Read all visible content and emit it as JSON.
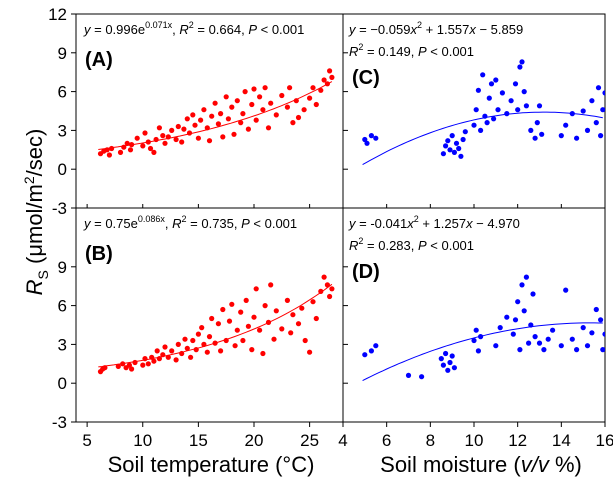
{
  "figure": {
    "y_axis_label_main": "R",
    "y_axis_label_sub": "S",
    "y_axis_label_unit_pre": " (μmol/m",
    "y_axis_label_unit_sup": "2",
    "y_axis_label_unit_post": "/sec)",
    "x_label_left": "Soil temperature (°C)",
    "x_label_right_pre": "Soil moisture (",
    "x_label_right_italic": "v/v",
    "x_label_right_post": " %)",
    "colors": {
      "red": "#ff0000",
      "blue": "#0000ff",
      "axis": "#000000"
    }
  },
  "chart_data": [
    {
      "panel": "(A)",
      "type": "scatter",
      "x_variable": "Soil temperature (°C)",
      "xlim": [
        4,
        28
      ],
      "ylim": [
        -3,
        12
      ],
      "xticks": [
        5,
        10,
        15,
        20,
        25
      ],
      "yticks": [
        -3,
        0,
        3,
        6,
        9,
        12
      ],
      "equation": "y = 0.996e^0.071x, R² = 0.664, P < 0.001",
      "equation_parts": {
        "lhs": "y",
        "mid": " = 0.996e",
        "exp": "0.071x",
        "r": "R",
        "r2": "2",
        "rest": " = 0.664,  ",
        "p": "P",
        "ptail": " < 0.001"
      },
      "fit": {
        "kind": "exp",
        "a": 0.996,
        "b": 0.071,
        "x_range": [
          6,
          27
        ]
      },
      "color": "#ff0000",
      "points": [
        [
          6.2,
          1.2
        ],
        [
          6.5,
          1.4
        ],
        [
          6.8,
          1.5
        ],
        [
          7.0,
          1.1
        ],
        [
          7.2,
          1.6
        ],
        [
          8.0,
          1.3
        ],
        [
          8.3,
          1.7
        ],
        [
          8.6,
          2.0
        ],
        [
          8.9,
          1.5
        ],
        [
          9.0,
          1.9
        ],
        [
          9.5,
          2.4
        ],
        [
          10.0,
          1.8
        ],
        [
          10.2,
          2.8
        ],
        [
          10.5,
          2.1
        ],
        [
          10.7,
          1.6
        ],
        [
          11.0,
          1.3
        ],
        [
          11.2,
          2.3
        ],
        [
          11.5,
          3.2
        ],
        [
          11.8,
          2.6
        ],
        [
          12.0,
          2.0
        ],
        [
          12.3,
          2.5
        ],
        [
          12.6,
          3.0
        ],
        [
          13.0,
          2.3
        ],
        [
          13.2,
          3.3
        ],
        [
          13.5,
          2.1
        ],
        [
          13.7,
          3.1
        ],
        [
          14.0,
          3.9
        ],
        [
          14.2,
          2.8
        ],
        [
          14.5,
          4.2
        ],
        [
          14.7,
          3.4
        ],
        [
          15.0,
          2.4
        ],
        [
          15.2,
          3.8
        ],
        [
          15.5,
          4.6
        ],
        [
          15.8,
          3.2
        ],
        [
          16.0,
          2.2
        ],
        [
          16.2,
          4.1
        ],
        [
          16.5,
          5.1
        ],
        [
          16.8,
          3.5
        ],
        [
          17.0,
          4.3
        ],
        [
          17.2,
          2.5
        ],
        [
          17.5,
          5.6
        ],
        [
          17.7,
          3.9
        ],
        [
          18.0,
          4.8
        ],
        [
          18.2,
          2.7
        ],
        [
          18.5,
          5.3
        ],
        [
          18.8,
          3.6
        ],
        [
          19.0,
          4.3
        ],
        [
          19.2,
          6.0
        ],
        [
          19.5,
          3.1
        ],
        [
          19.8,
          5.0
        ],
        [
          20.0,
          6.2
        ],
        [
          20.2,
          3.8
        ],
        [
          20.5,
          5.6
        ],
        [
          20.8,
          4.6
        ],
        [
          21.0,
          6.3
        ],
        [
          21.3,
          3.2
        ],
        [
          21.5,
          5.1
        ],
        [
          22.0,
          4.2
        ],
        [
          22.5,
          5.7
        ],
        [
          23.0,
          4.8
        ],
        [
          23.2,
          6.3
        ],
        [
          23.5,
          3.6
        ],
        [
          23.8,
          5.3
        ],
        [
          24.0,
          4.0
        ],
        [
          24.5,
          4.6
        ],
        [
          25.0,
          5.5
        ],
        [
          25.3,
          6.3
        ],
        [
          25.6,
          5.0
        ],
        [
          26.0,
          6.1
        ],
        [
          26.3,
          6.9
        ],
        [
          26.6,
          6.6
        ],
        [
          26.8,
          7.6
        ],
        [
          27.0,
          7.1
        ]
      ]
    },
    {
      "panel": "(B)",
      "type": "scatter",
      "x_variable": "Soil temperature (°C)",
      "xlim": [
        4,
        28
      ],
      "ylim": [
        -3,
        12
      ],
      "xticks": [
        5,
        10,
        15,
        20,
        25
      ],
      "yticks": [
        -3,
        0,
        3,
        6,
        9
      ],
      "equation": "y = 0.75e^0.086x, R² = 0.735, P < 0.001",
      "equation_parts": {
        "lhs": "y",
        "mid": " = 0.75e",
        "exp": "0.086x",
        "r": "R",
        "r2": "2",
        "rest": " = 0.735,  ",
        "p": "P",
        "ptail": " < 0.001"
      },
      "fit": {
        "kind": "exp",
        "a": 0.75,
        "b": 0.086,
        "x_range": [
          6,
          27
        ]
      },
      "color": "#ff0000",
      "points": [
        [
          6.2,
          0.9
        ],
        [
          6.4,
          1.1
        ],
        [
          6.6,
          1.2
        ],
        [
          7.8,
          1.3
        ],
        [
          8.2,
          1.5
        ],
        [
          8.5,
          1.2
        ],
        [
          8.8,
          1.4
        ],
        [
          9.0,
          1.1
        ],
        [
          9.3,
          1.6
        ],
        [
          10.0,
          1.4
        ],
        [
          10.2,
          1.9
        ],
        [
          10.5,
          1.5
        ],
        [
          10.8,
          2.0
        ],
        [
          11.0,
          1.7
        ],
        [
          11.3,
          2.5
        ],
        [
          11.5,
          1.9
        ],
        [
          11.8,
          2.2
        ],
        [
          12.0,
          2.8
        ],
        [
          12.3,
          2.0
        ],
        [
          12.6,
          2.5
        ],
        [
          13.0,
          1.8
        ],
        [
          13.2,
          3.0
        ],
        [
          13.5,
          2.3
        ],
        [
          13.8,
          3.4
        ],
        [
          14.0,
          2.7
        ],
        [
          14.3,
          2.0
        ],
        [
          14.5,
          3.3
        ],
        [
          14.8,
          2.6
        ],
        [
          15.0,
          3.8
        ],
        [
          15.3,
          4.3
        ],
        [
          15.5,
          3.0
        ],
        [
          15.8,
          2.4
        ],
        [
          16.0,
          3.6
        ],
        [
          16.2,
          5.0
        ],
        [
          16.5,
          3.1
        ],
        [
          16.8,
          4.6
        ],
        [
          17.0,
          2.5
        ],
        [
          17.2,
          5.7
        ],
        [
          17.5,
          3.3
        ],
        [
          17.8,
          4.8
        ],
        [
          18.0,
          6.1
        ],
        [
          18.3,
          2.9
        ],
        [
          18.5,
          4.1
        ],
        [
          18.8,
          5.5
        ],
        [
          19.0,
          3.3
        ],
        [
          19.3,
          6.4
        ],
        [
          19.5,
          4.4
        ],
        [
          19.8,
          2.6
        ],
        [
          20.0,
          5.1
        ],
        [
          20.2,
          7.3
        ],
        [
          20.5,
          4.1
        ],
        [
          20.8,
          2.3
        ],
        [
          21.0,
          6.0
        ],
        [
          21.3,
          4.7
        ],
        [
          21.5,
          7.6
        ],
        [
          21.8,
          3.4
        ],
        [
          22.0,
          5.6
        ],
        [
          22.5,
          4.2
        ],
        [
          23.0,
          6.4
        ],
        [
          23.3,
          3.9
        ],
        [
          23.5,
          5.3
        ],
        [
          24.0,
          4.6
        ],
        [
          24.3,
          5.8
        ],
        [
          24.6,
          3.3
        ],
        [
          25.0,
          2.4
        ],
        [
          25.3,
          6.3
        ],
        [
          25.6,
          5.0
        ],
        [
          26.0,
          7.1
        ],
        [
          26.3,
          8.2
        ],
        [
          26.6,
          7.6
        ],
        [
          26.8,
          6.7
        ],
        [
          27.0,
          7.3
        ]
      ]
    },
    {
      "panel": "(C)",
      "type": "scatter",
      "x_variable": "Soil moisture (v/v %)",
      "xlim": [
        4,
        16
      ],
      "ylim": [
        -3,
        12
      ],
      "xticks": [
        4,
        6,
        8,
        10,
        12,
        14,
        16
      ],
      "yticks": [
        -3,
        0,
        3,
        6,
        9,
        12
      ],
      "equation": "y = −0.059x² + 1.557x − 5.859; R² = 0.149, P < 0.001",
      "equation_parts": {
        "lhs": "y",
        "line1a": " = −0.059",
        "x1": "x",
        "sq": "2",
        "line1b": " + 1.557",
        "x2": "x",
        "line1c": " − 5.859",
        "r": "R",
        "r2": "2",
        "rest": " = 0.149,  ",
        "p": "P",
        "ptail": " < 0.001"
      },
      "fit": {
        "kind": "quad",
        "a": -0.059,
        "b": 1.557,
        "c": -5.859,
        "x_range": [
          4.9,
          15.9
        ]
      },
      "color": "#0000ff",
      "points": [
        [
          5.0,
          2.3
        ],
        [
          5.1,
          2.0
        ],
        [
          5.3,
          2.6
        ],
        [
          5.5,
          2.4
        ],
        [
          8.6,
          1.2
        ],
        [
          8.7,
          1.8
        ],
        [
          8.8,
          2.2
        ],
        [
          8.9,
          1.5
        ],
        [
          9.0,
          2.6
        ],
        [
          9.1,
          1.3
        ],
        [
          9.2,
          2.0
        ],
        [
          9.3,
          1.6
        ],
        [
          9.4,
          1.0
        ],
        [
          9.5,
          2.3
        ],
        [
          9.6,
          2.9
        ],
        [
          10.0,
          3.4
        ],
        [
          10.1,
          4.6
        ],
        [
          10.2,
          6.1
        ],
        [
          10.3,
          3.0
        ],
        [
          10.4,
          7.3
        ],
        [
          10.5,
          4.1
        ],
        [
          10.6,
          3.6
        ],
        [
          10.7,
          5.5
        ],
        [
          10.8,
          6.6
        ],
        [
          10.9,
          3.9
        ],
        [
          11.0,
          6.9
        ],
        [
          11.1,
          4.6
        ],
        [
          11.3,
          5.9
        ],
        [
          11.5,
          4.3
        ],
        [
          11.7,
          5.3
        ],
        [
          11.9,
          6.6
        ],
        [
          12.0,
          4.6
        ],
        [
          12.1,
          7.9
        ],
        [
          12.2,
          8.3
        ],
        [
          12.3,
          6.0
        ],
        [
          12.4,
          4.9
        ],
        [
          12.6,
          3.0
        ],
        [
          12.8,
          2.4
        ],
        [
          12.9,
          3.6
        ],
        [
          13.0,
          4.9
        ],
        [
          13.1,
          2.7
        ],
        [
          14.0,
          2.6
        ],
        [
          14.2,
          3.4
        ],
        [
          14.5,
          4.3
        ],
        [
          14.7,
          2.4
        ],
        [
          15.0,
          4.5
        ],
        [
          15.2,
          3.0
        ],
        [
          15.4,
          5.3
        ],
        [
          15.6,
          3.6
        ],
        [
          15.7,
          6.3
        ],
        [
          15.8,
          2.6
        ],
        [
          15.9,
          4.6
        ],
        [
          16.0,
          5.9
        ]
      ]
    },
    {
      "panel": "(D)",
      "type": "scatter",
      "x_variable": "Soil moisture (v/v %)",
      "xlim": [
        4,
        16
      ],
      "ylim": [
        -3,
        12
      ],
      "xticks": [
        4,
        6,
        8,
        10,
        12,
        14,
        16
      ],
      "yticks": [
        -3,
        0,
        3,
        6,
        9
      ],
      "equation": "y = -0.041x² + 1.257x − 4.970; R² = 0.283, P < 0.001",
      "equation_parts": {
        "lhs": "y",
        "line1a": " = -0.041",
        "x1": "x",
        "sq": "2",
        "line1b": " + 1.257",
        "x2": "x",
        "line1c": " − 4.970",
        "r": "R",
        "r2": "2",
        "rest": " = 0.283,  ",
        "p": "P",
        "ptail": " < 0.001"
      },
      "fit": {
        "kind": "quad",
        "a": -0.041,
        "b": 1.257,
        "c": -4.97,
        "x_range": [
          4.9,
          15.9
        ]
      },
      "color": "#0000ff",
      "points": [
        [
          5.0,
          2.2
        ],
        [
          5.3,
          2.5
        ],
        [
          5.5,
          2.9
        ],
        [
          7.0,
          0.6
        ],
        [
          7.6,
          0.5
        ],
        [
          8.5,
          1.9
        ],
        [
          8.6,
          1.4
        ],
        [
          8.7,
          2.3
        ],
        [
          8.8,
          1.0
        ],
        [
          8.9,
          1.6
        ],
        [
          9.0,
          2.1
        ],
        [
          9.1,
          1.2
        ],
        [
          10.0,
          3.3
        ],
        [
          10.1,
          4.1
        ],
        [
          10.2,
          2.5
        ],
        [
          10.3,
          3.6
        ],
        [
          11.0,
          2.9
        ],
        [
          11.2,
          4.3
        ],
        [
          11.5,
          5.1
        ],
        [
          11.8,
          3.8
        ],
        [
          11.9,
          4.9
        ],
        [
          12.0,
          6.3
        ],
        [
          12.1,
          2.6
        ],
        [
          12.2,
          7.6
        ],
        [
          12.3,
          5.6
        ],
        [
          12.4,
          8.2
        ],
        [
          12.5,
          3.1
        ],
        [
          12.6,
          4.5
        ],
        [
          12.7,
          6.9
        ],
        [
          12.8,
          3.6
        ],
        [
          13.0,
          3.1
        ],
        [
          13.2,
          2.6
        ],
        [
          13.4,
          3.4
        ],
        [
          13.6,
          4.1
        ],
        [
          14.0,
          2.9
        ],
        [
          14.2,
          7.2
        ],
        [
          14.5,
          3.4
        ],
        [
          14.7,
          2.6
        ],
        [
          15.0,
          4.3
        ],
        [
          15.2,
          2.9
        ],
        [
          15.4,
          3.9
        ],
        [
          15.6,
          5.7
        ],
        [
          15.8,
          4.9
        ],
        [
          15.9,
          2.6
        ],
        [
          16.0,
          3.8
        ]
      ]
    }
  ]
}
